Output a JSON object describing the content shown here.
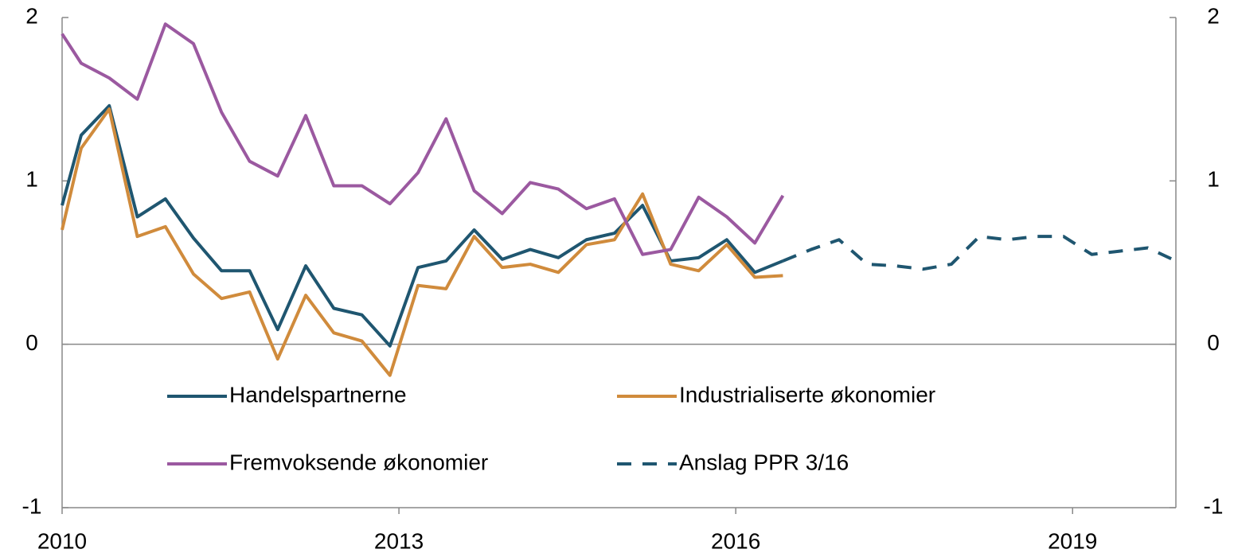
{
  "chart_data": {
    "type": "line",
    "x": [
      2010,
      2010.17,
      2010.42,
      2010.67,
      2010.92,
      2011.17,
      2011.42,
      2011.67,
      2011.92,
      2012.17,
      2012.42,
      2012.67,
      2012.92,
      2013.17,
      2013.42,
      2013.67,
      2013.92,
      2014.17,
      2014.42,
      2014.67,
      2014.92,
      2015.17,
      2015.42,
      2015.67,
      2015.92,
      2016.17,
      2016.42,
      2016.67,
      2016.92,
      2017.17,
      2017.42,
      2017.67,
      2017.92,
      2018.17,
      2018.42,
      2018.67,
      2018.92,
      2019.17,
      2019.42,
      2019.67,
      2019.92
    ],
    "series": [
      {
        "name": "Handelspartnerne",
        "color": "#1f5670",
        "values": [
          0.85,
          1.28,
          1.46,
          0.78,
          0.89,
          0.65,
          0.45,
          0.45,
          0.09,
          0.48,
          0.22,
          0.18,
          -0.01,
          0.47,
          0.51,
          0.7,
          0.52,
          0.58,
          0.53,
          0.64,
          0.68,
          0.85,
          0.51,
          0.53,
          0.64,
          0.44,
          0.51,
          null,
          null,
          null,
          null,
          null,
          null,
          null,
          null,
          null,
          null,
          null,
          null,
          null,
          null
        ]
      },
      {
        "name": "Industrialiserte økonomier",
        "color": "#d08b3c",
        "values": [
          0.7,
          1.2,
          1.44,
          0.66,
          0.72,
          0.43,
          0.28,
          0.32,
          -0.09,
          0.3,
          0.07,
          0.02,
          -0.19,
          0.36,
          0.34,
          0.66,
          0.47,
          0.49,
          0.44,
          0.61,
          0.64,
          0.92,
          0.49,
          0.45,
          0.61,
          0.41,
          0.42,
          null,
          null,
          null,
          null,
          null,
          null,
          null,
          null,
          null,
          null,
          null,
          null,
          null,
          null
        ]
      },
      {
        "name": "Fremvoksende økonomier",
        "color": "#9b59a0",
        "values": [
          1.9,
          1.72,
          1.63,
          1.5,
          1.96,
          1.84,
          1.42,
          1.12,
          1.03,
          1.4,
          0.97,
          0.97,
          0.86,
          1.05,
          1.38,
          0.94,
          0.8,
          0.99,
          0.95,
          0.83,
          0.89,
          0.55,
          0.58,
          0.9,
          0.78,
          0.62,
          0.91,
          null,
          null,
          null,
          null,
          null,
          null,
          null,
          null,
          null,
          null,
          null,
          null,
          null,
          null
        ]
      },
      {
        "name": "Anslag PPR 3/16",
        "color": "#1f5670",
        "dashed": true,
        "values": [
          null,
          null,
          null,
          null,
          null,
          null,
          null,
          null,
          null,
          null,
          null,
          null,
          null,
          null,
          null,
          null,
          null,
          null,
          null,
          null,
          null,
          null,
          null,
          null,
          null,
          null,
          0.51,
          0.58,
          0.64,
          0.49,
          0.48,
          0.46,
          0.49,
          0.66,
          0.64,
          0.66,
          0.66,
          0.55,
          0.57,
          0.59,
          0.51
        ]
      }
    ],
    "xlim": [
      2010,
      2019.92
    ],
    "xticks": [
      2010,
      2013,
      2016,
      2019
    ],
    "ylim": [
      -1,
      2
    ],
    "yticks": [
      -1,
      0,
      1,
      2
    ],
    "y2lim": [
      -1,
      2
    ],
    "y2ticks": [
      -1,
      0,
      1,
      2
    ]
  }
}
